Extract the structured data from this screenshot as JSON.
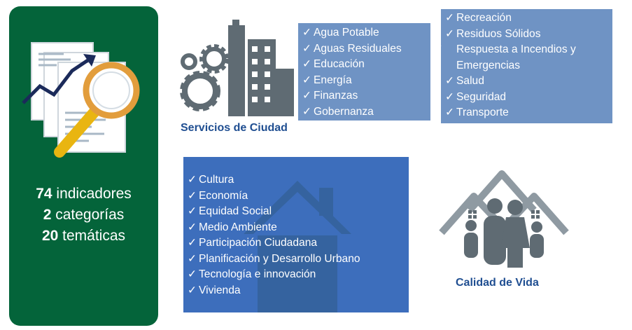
{
  "summary": {
    "indicators_num": "74",
    "indicators_text": " indicadores",
    "categories_num": "2",
    "categories_text": " categorías",
    "themes_num": "20",
    "themes_text": " temáticas"
  },
  "checkmark": "✓",
  "city_services": {
    "label": "Servicios de Ciudad",
    "items_col1": [
      "Agua Potable",
      "Aguas Residuales",
      "Educación",
      "Energía",
      "Finanzas",
      "Gobernanza"
    ],
    "items_col2": [
      "Recreación",
      "Residuos Sólidos",
      "Respuesta a Incendios y Emergencias",
      "Salud",
      "Seguridad",
      "Transporte"
    ]
  },
  "quality_of_life": {
    "label": "Calidad de Vida",
    "items": [
      "Cultura",
      "Economía",
      "Equidad Social",
      "Medio Ambiente",
      "Participación Ciudadana",
      "Planificación y Desarrollo Urbano",
      "Tecnología e innovación",
      "Vivienda"
    ]
  },
  "colors": {
    "green_panel": "#04643a",
    "light_blue_box": "#6f93c4",
    "dark_blue_box": "#3d6ebc",
    "label_blue": "#1f4e91",
    "icon_gray": "#5f6b73"
  },
  "icons": {
    "summary": "magnifier-document-chart-icon",
    "city": "city-gears-icon",
    "house": "house-icon",
    "family": "family-home-icon"
  }
}
